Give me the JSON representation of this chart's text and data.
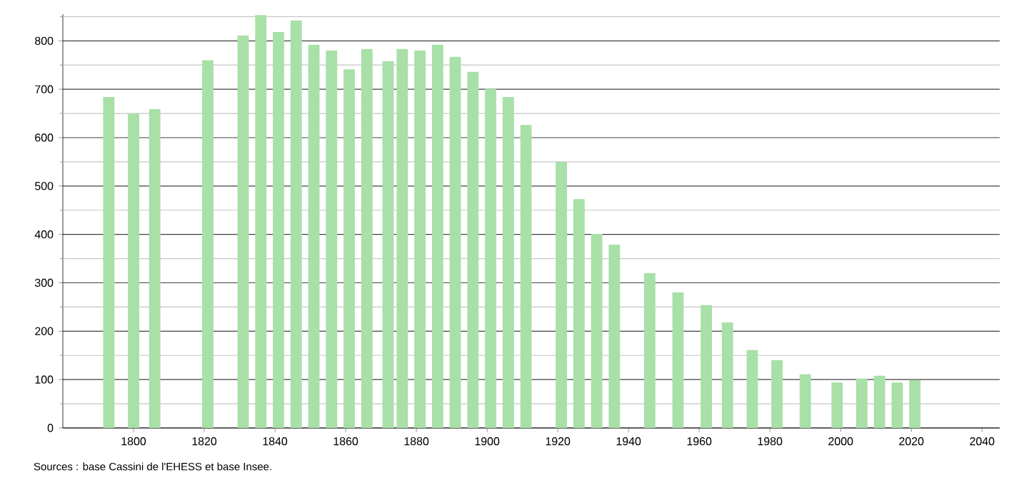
{
  "chart_data": {
    "type": "bar",
    "color": "#a8e0a8",
    "x": [
      1793,
      1800,
      1806,
      1821,
      1831,
      1836,
      1841,
      1846,
      1851,
      1856,
      1861,
      1866,
      1872,
      1876,
      1881,
      1886,
      1891,
      1896,
      1901,
      1906,
      1911,
      1921,
      1926,
      1931,
      1936,
      1946,
      1954,
      1962,
      1968,
      1975,
      1982,
      1990,
      1999,
      2006,
      2011,
      2016,
      2021
    ],
    "values": [
      684,
      650,
      659,
      760,
      811,
      853,
      818,
      842,
      792,
      780,
      741,
      783,
      758,
      783,
      780,
      792,
      767,
      736,
      701,
      684,
      626,
      550,
      473,
      401,
      379,
      320,
      280,
      254,
      218,
      161,
      140,
      111,
      94,
      102,
      108,
      94,
      99
    ],
    "xlim": [
      1780,
      2045
    ],
    "ylim": [
      0,
      855
    ],
    "xticks": [
      1800,
      1820,
      1840,
      1860,
      1880,
      1900,
      1920,
      1940,
      1960,
      1980,
      2000,
      2020,
      2040
    ],
    "yticks": [
      0,
      {
        "value": 50,
        "label": null
      },
      100,
      {
        "value": 150,
        "label": null
      },
      200,
      {
        "value": 250,
        "label": null
      },
      300,
      {
        "value": 350,
        "label": null
      },
      400,
      {
        "value": 450,
        "label": null
      },
      500,
      {
        "value": 550,
        "label": null
      },
      600,
      {
        "value": 650,
        "label": null
      },
      700,
      {
        "value": 750,
        "label": null
      },
      800,
      {
        "value": 850,
        "label": null
      }
    ],
    "grid": "y",
    "annotations": [
      "Sources : base Cassini de l'EHESS et base Insee."
    ]
  }
}
